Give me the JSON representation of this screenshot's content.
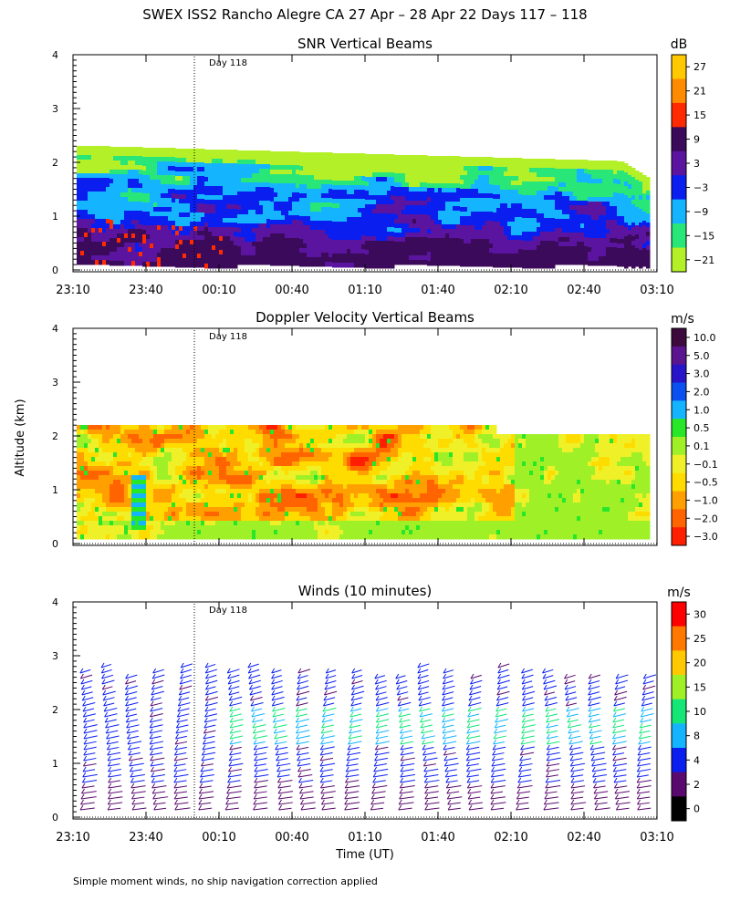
{
  "figure": {
    "title": "SWEX ISS2 Rancho Alegre CA  27 Apr – 28 Apr 22 Days 117 – 118",
    "footnote": "Simple moment winds, no ship navigation correction applied",
    "ylabel": "Altitude (km)",
    "xlabel": "Time (UT)"
  },
  "chart_data": [
    {
      "type": "heatmap",
      "title": "SNR Vertical Beams",
      "ylabel": "Altitude (km)",
      "xlim": [
        "23:10",
        "03:10"
      ],
      "ylim": [
        0,
        4
      ],
      "yticks": [
        "0",
        "1",
        "2",
        "3",
        "4"
      ],
      "xticks": [
        "23:10",
        "23:40",
        "00:10",
        "00:40",
        "01:10",
        "01:40",
        "02:10",
        "02:40",
        "03:10"
      ],
      "day_marker": "Day 118",
      "colorbar": {
        "unit": "dB",
        "tick_labels": [
          "27",
          "21",
          "15",
          "9",
          "3",
          "−3",
          "−9",
          "−15",
          "−21"
        ],
        "colors": [
          "#ffc800",
          "#ff8c00",
          "#ff2a00",
          "#3c0a5a",
          "#5a14a0",
          "#0a1ef0",
          "#14b4ff",
          "#28e678",
          "#b4f028"
        ]
      }
    },
    {
      "type": "heatmap",
      "title": "Doppler Velocity Vertical Beams",
      "ylabel": "Altitude (km)",
      "xlim": [
        "23:10",
        "03:10"
      ],
      "ylim": [
        0,
        4
      ],
      "yticks": [
        "0",
        "1",
        "2",
        "3",
        "4"
      ],
      "day_marker": "Day 118",
      "colorbar": {
        "unit": "m/s",
        "tick_labels": [
          "10.0",
          "5.0",
          "3.0",
          "2.0",
          "1.0",
          "0.5",
          "0.1",
          "−0.1",
          "−0.5",
          "−1.0",
          "−2.0",
          "−3.0"
        ],
        "colors": [
          "#3c0a3c",
          "#5a1490",
          "#2814c8",
          "#0a50f0",
          "#14b4ff",
          "#28e628",
          "#a0f028",
          "#f0f028",
          "#ffdc00",
          "#ffa000",
          "#ff6400",
          "#ff1e00"
        ]
      }
    },
    {
      "type": "wind-barbs",
      "title": "Winds (10 minutes)",
      "ylabel": "Altitude (km)",
      "xlabel": "Time (UT)",
      "xlim": [
        "23:10",
        "03:10"
      ],
      "ylim": [
        0,
        4
      ],
      "yticks": [
        "0",
        "1",
        "2",
        "3",
        "4"
      ],
      "xticks": [
        "23:10",
        "23:40",
        "00:10",
        "00:40",
        "01:10",
        "01:40",
        "02:10",
        "02:40",
        "03:10"
      ],
      "day_marker": "Day 118",
      "profile_interval_minutes": 10,
      "colorbar": {
        "unit": "m/s",
        "tick_labels": [
          "30",
          "25",
          "20",
          "15",
          "10",
          "8",
          "4",
          "2",
          "0"
        ],
        "colors": [
          "#ff0000",
          "#ff7800",
          "#ffc800",
          "#a0f028",
          "#14e678",
          "#14b4ff",
          "#0a1ef0",
          "#5a0a6e",
          "#000000"
        ]
      }
    }
  ]
}
